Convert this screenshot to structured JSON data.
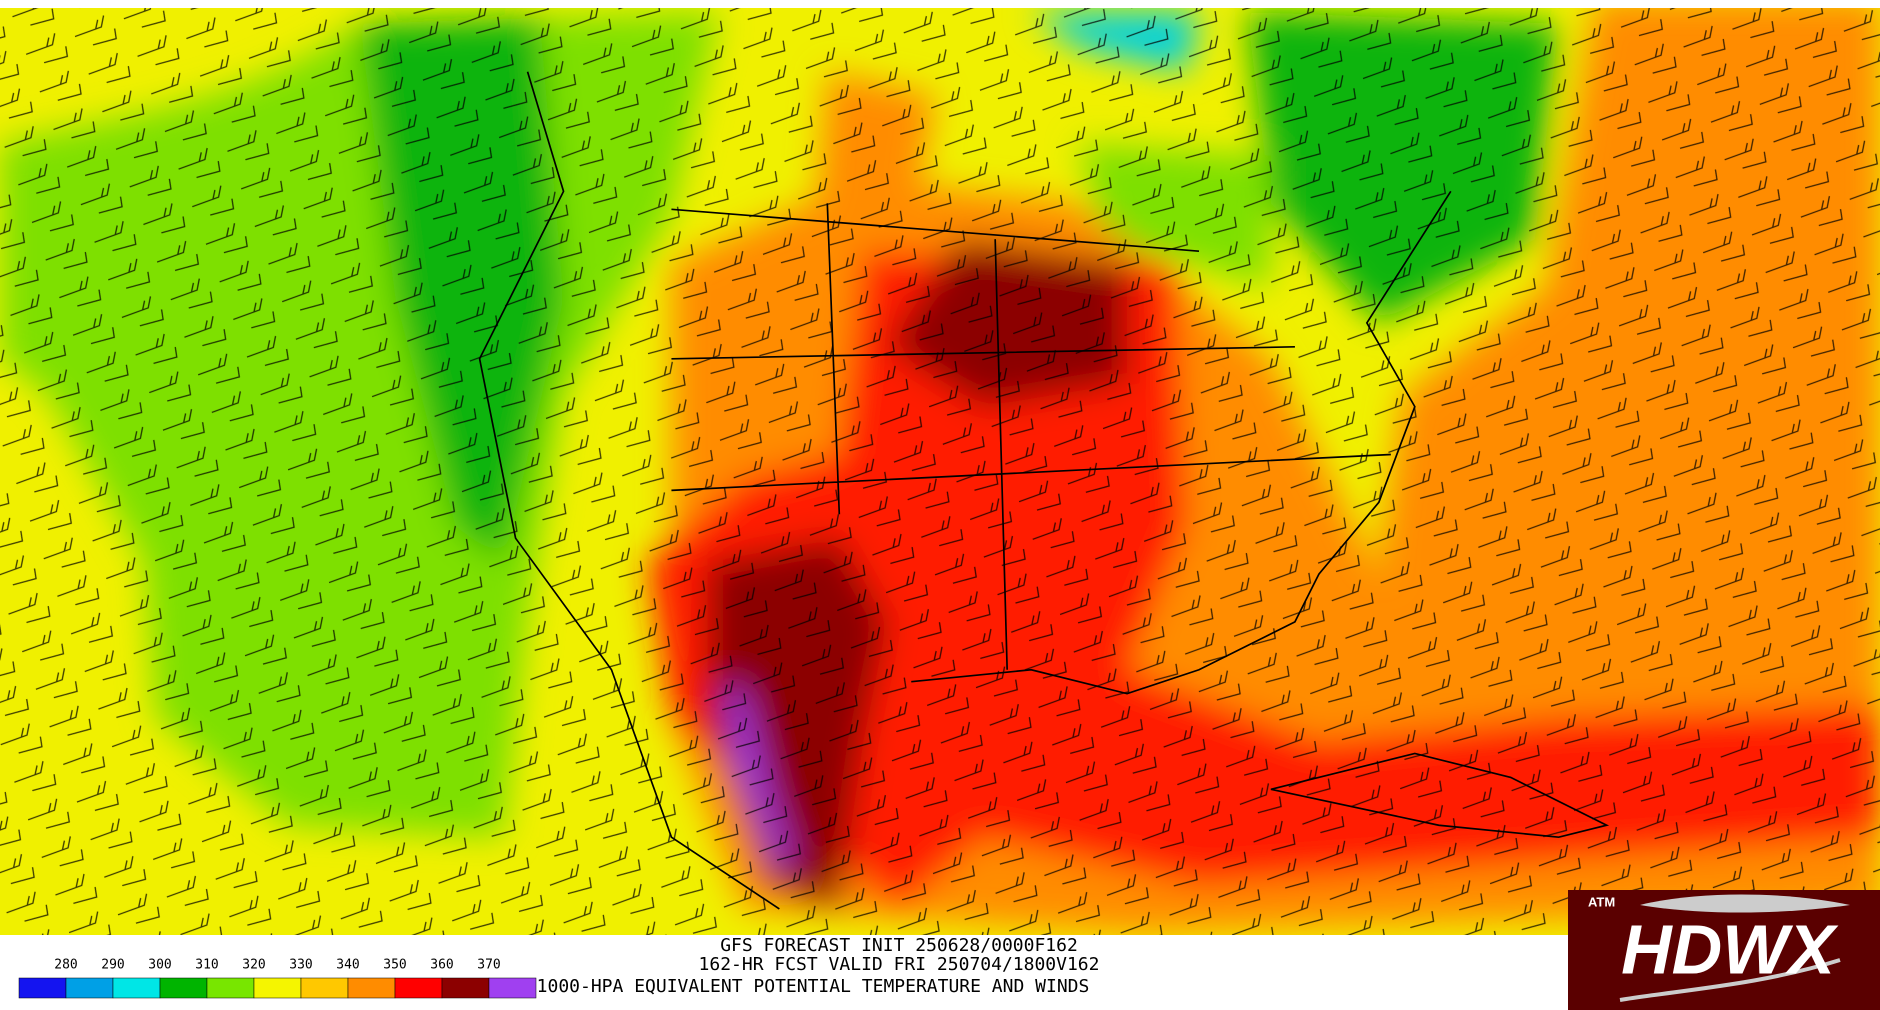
{
  "header": {
    "line1": "GFS FORECAST INIT 250628/0000F162",
    "line2": "162-HR FCST VALID FRI 250704/1800V162",
    "line3": "1000-HPA EQUIVALENT POTENTIAL TEMPERATURE AND WINDS"
  },
  "legend": {
    "labels": [
      280,
      290,
      300,
      310,
      320,
      330,
      340,
      350,
      360,
      370
    ],
    "colors": [
      "#1414f0",
      "#00a0e6",
      "#00e6e6",
      "#00b400",
      "#78e600",
      "#f5f500",
      "#ffc800",
      "#ff8c00",
      "#ff0000",
      "#8c0000",
      "#a040f0"
    ]
  },
  "logo": {
    "badge": "ATM",
    "text": "HDWX"
  }
}
